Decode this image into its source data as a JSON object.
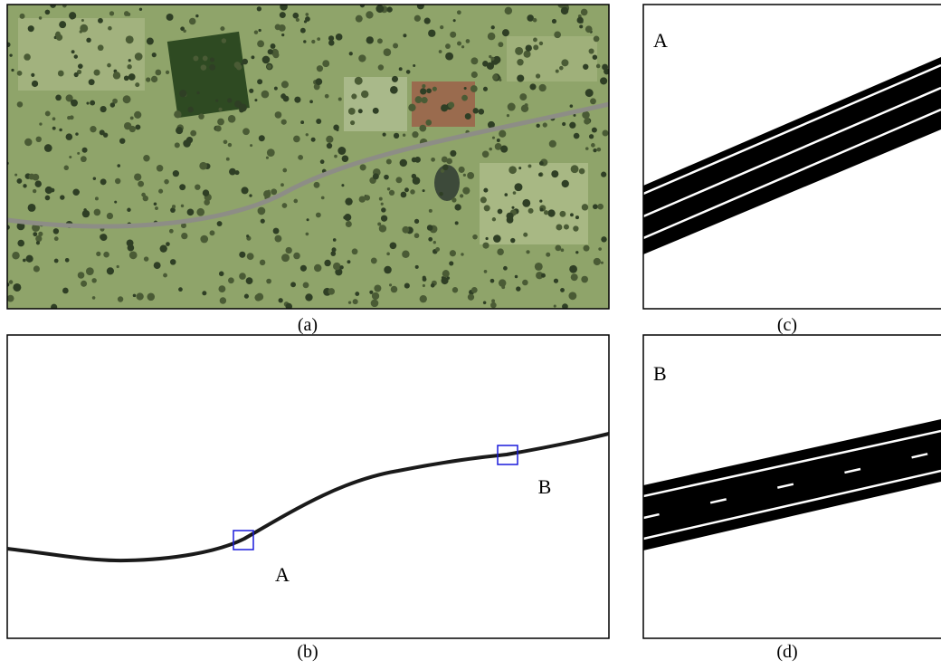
{
  "panels": [
    {
      "caption": "(a)"
    },
    {
      "caption": "(b)",
      "markers": [
        "A",
        "B"
      ]
    },
    {
      "caption": "(c)",
      "label": "A"
    },
    {
      "caption": "(d)",
      "label": "B"
    }
  ]
}
